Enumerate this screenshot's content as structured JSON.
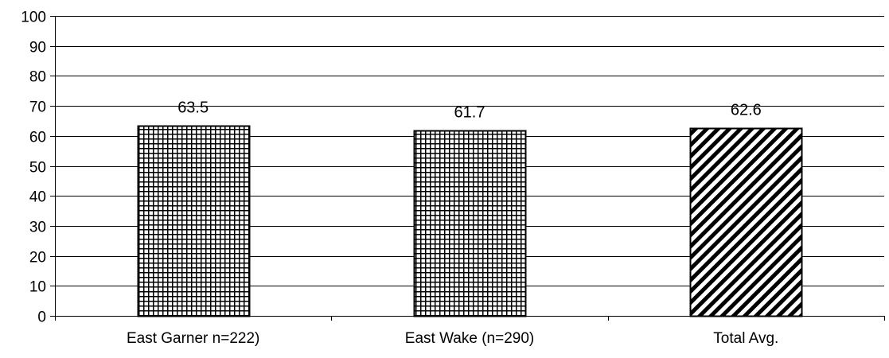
{
  "chart_data": {
    "type": "bar",
    "title": "",
    "xlabel": "",
    "ylabel": "",
    "categories": [
      "East Garner n=222)",
      "East Wake (n=290)",
      "Total Avg."
    ],
    "values": [
      63.5,
      61.7,
      62.6
    ],
    "data_labels": [
      "63.5",
      "61.7",
      "62.6"
    ],
    "ylim": [
      0,
      100
    ],
    "yticks": [
      0,
      10,
      20,
      30,
      40,
      50,
      60,
      70,
      80,
      90,
      100
    ],
    "ytick_labels": [
      "0",
      "10",
      "20",
      "30",
      "40",
      "50",
      "60",
      "70",
      "80",
      "90",
      "100"
    ],
    "bar_patterns": [
      "grid",
      "grid",
      "diagonal"
    ],
    "grid": true,
    "legend": "none",
    "colors": {
      "bar_fill": "#ffffff",
      "pattern": "#000000",
      "gridline": "#000000",
      "axis": "#000000",
      "background": "#ffffff"
    }
  }
}
